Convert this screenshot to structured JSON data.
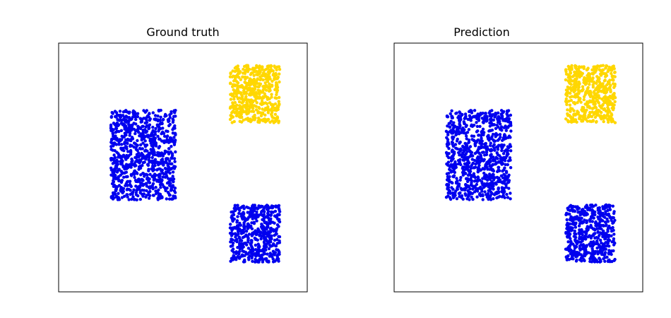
{
  "chart_data": [
    {
      "type": "scatter",
      "title": "Ground truth",
      "xlabel": "",
      "ylabel": "",
      "xlim": [
        0,
        1
      ],
      "ylim": [
        0,
        1
      ],
      "ticks": false,
      "grid": false,
      "clusters": [
        {
          "color": "#0000ee",
          "xrange": [
            0.21,
            0.47
          ],
          "yrange": [
            0.37,
            0.73
          ],
          "count": 900
        },
        {
          "color": "#0000ee",
          "xrange": [
            0.69,
            0.89
          ],
          "yrange": [
            0.12,
            0.35
          ],
          "count": 520
        },
        {
          "color": "#ffd700",
          "xrange": [
            0.69,
            0.89
          ],
          "yrange": [
            0.68,
            0.91
          ],
          "count": 520
        }
      ]
    },
    {
      "type": "scatter",
      "title": "Prediction",
      "xlabel": "",
      "ylabel": "",
      "xlim": [
        0,
        1
      ],
      "ylim": [
        0,
        1
      ],
      "ticks": false,
      "grid": false,
      "clusters": [
        {
          "color": "#0000ee",
          "xrange": [
            0.21,
            0.47
          ],
          "yrange": [
            0.37,
            0.73
          ],
          "count": 900
        },
        {
          "color": "#0000ee",
          "xrange": [
            0.69,
            0.89
          ],
          "yrange": [
            0.12,
            0.35
          ],
          "count": 520
        },
        {
          "color": "#ffd700",
          "xrange": [
            0.69,
            0.89
          ],
          "yrange": [
            0.68,
            0.91
          ],
          "count": 520
        }
      ]
    }
  ]
}
